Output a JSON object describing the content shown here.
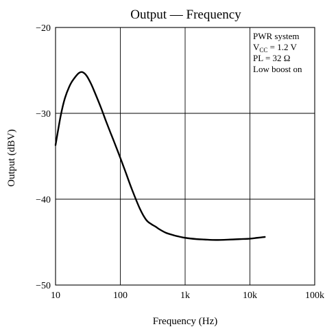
{
  "chart_data": {
    "type": "line",
    "title": "Output — Frequency",
    "xlabel": "Frequency  (Hz)",
    "ylabel": "Output  (dBV)",
    "xscale": "log",
    "xlim": [
      10,
      100000
    ],
    "ylim": [
      -50,
      -20
    ],
    "grid": true,
    "x_ticks": [
      {
        "value": 10,
        "label": "10"
      },
      {
        "value": 100,
        "label": "100"
      },
      {
        "value": 1000,
        "label": "1k"
      },
      {
        "value": 10000,
        "label": "10k"
      },
      {
        "value": 100000,
        "label": "100k"
      }
    ],
    "y_ticks": [
      {
        "value": -20,
        "label": "−20"
      },
      {
        "value": -30,
        "label": "−30"
      },
      {
        "value": -40,
        "label": "−40"
      },
      {
        "value": -50,
        "label": "−50"
      }
    ],
    "annotation": {
      "lines": [
        {
          "text": "PWR system"
        },
        {
          "pre": "V",
          "sub": "CC",
          "post": " = 1.2 V"
        },
        {
          "text": "PL = 32 Ω"
        },
        {
          "text": "Low boost on"
        }
      ]
    },
    "series": [
      {
        "x": [
          10,
          12,
          14,
          17,
          20,
          23,
          26,
          30,
          35,
          40,
          50,
          60,
          70,
          80,
          100,
          120,
          150,
          200,
          250,
          300,
          350,
          400,
          500,
          600,
          700,
          800,
          1000,
          1500,
          2000,
          3000,
          5000,
          7000,
          10000,
          13000,
          17000
        ],
        "y": [
          -33.7,
          -30.3,
          -28.2,
          -26.6,
          -25.8,
          -25.3,
          -25.2,
          -25.6,
          -26.5,
          -27.5,
          -29.3,
          -30.9,
          -32.2,
          -33.3,
          -35.2,
          -36.8,
          -38.8,
          -41.1,
          -42.4,
          -42.9,
          -43.2,
          -43.5,
          -43.9,
          -44.1,
          -44.25,
          -44.35,
          -44.5,
          -44.65,
          -44.7,
          -44.75,
          -44.7,
          -44.65,
          -44.6,
          -44.5,
          -44.4
        ]
      }
    ]
  }
}
